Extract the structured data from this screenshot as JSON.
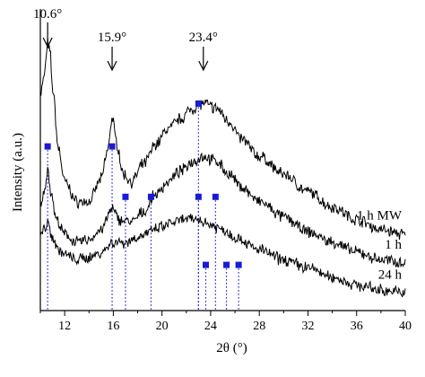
{
  "chart_data": {
    "type": "line",
    "title": "",
    "xlabel": "2θ (°)",
    "ylabel": "Intensity (a.u.)",
    "xlim": [
      10,
      40
    ],
    "x_ticks": [
      "12",
      "16",
      "20",
      "24",
      "28",
      "32",
      "36",
      "40"
    ],
    "y_ticks": "none",
    "grid": false,
    "legend": "none",
    "line_color": "#000000",
    "marker_color": "#1a1ad6",
    "series": [
      {
        "name": "1 h MW",
        "points": [
          [
            10.0,
            0.8
          ],
          [
            10.3,
            0.86
          ],
          [
            10.5,
            0.95
          ],
          [
            10.6,
            1.0
          ],
          [
            10.8,
            0.96
          ],
          [
            11.0,
            0.82
          ],
          [
            11.5,
            0.58
          ],
          [
            12.0,
            0.45
          ],
          [
            13.0,
            0.37
          ],
          [
            14.0,
            0.37
          ],
          [
            15.0,
            0.46
          ],
          [
            15.5,
            0.57
          ],
          [
            15.9,
            0.7
          ],
          [
            16.3,
            0.6
          ],
          [
            16.8,
            0.48
          ],
          [
            17.5,
            0.45
          ],
          [
            18.5,
            0.52
          ],
          [
            19.5,
            0.6
          ],
          [
            20.5,
            0.66
          ],
          [
            21.5,
            0.7
          ],
          [
            22.5,
            0.74
          ],
          [
            23.4,
            0.76
          ],
          [
            24.5,
            0.74
          ],
          [
            25.5,
            0.69
          ],
          [
            26.5,
            0.62
          ],
          [
            28.0,
            0.55
          ],
          [
            30.0,
            0.48
          ],
          [
            32.0,
            0.41
          ],
          [
            34.0,
            0.35
          ],
          [
            36.0,
            0.3
          ],
          [
            38.0,
            0.26
          ],
          [
            40.0,
            0.24
          ]
        ]
      },
      {
        "name": "1 h",
        "points": [
          [
            10.0,
            0.36
          ],
          [
            10.3,
            0.4
          ],
          [
            10.6,
            0.5
          ],
          [
            10.9,
            0.4
          ],
          [
            11.3,
            0.3
          ],
          [
            12.0,
            0.24
          ],
          [
            13.0,
            0.21
          ],
          [
            14.0,
            0.22
          ],
          [
            15.0,
            0.26
          ],
          [
            15.9,
            0.34
          ],
          [
            16.5,
            0.3
          ],
          [
            17.5,
            0.29
          ],
          [
            18.5,
            0.33
          ],
          [
            19.5,
            0.4
          ],
          [
            20.5,
            0.45
          ],
          [
            21.5,
            0.49
          ],
          [
            22.5,
            0.53
          ],
          [
            23.4,
            0.55
          ],
          [
            24.5,
            0.53
          ],
          [
            25.5,
            0.48
          ],
          [
            26.5,
            0.43
          ],
          [
            28.0,
            0.37
          ],
          [
            30.0,
            0.31
          ],
          [
            32.0,
            0.25
          ],
          [
            34.0,
            0.21
          ],
          [
            36.0,
            0.17
          ],
          [
            38.0,
            0.14
          ],
          [
            40.0,
            0.13
          ]
        ]
      },
      {
        "name": "24 h",
        "points": [
          [
            10.0,
            0.24
          ],
          [
            10.3,
            0.26
          ],
          [
            10.6,
            0.29
          ],
          [
            10.9,
            0.24
          ],
          [
            11.5,
            0.18
          ],
          [
            12.0,
            0.16
          ],
          [
            13.0,
            0.14
          ],
          [
            14.0,
            0.15
          ],
          [
            15.0,
            0.17
          ],
          [
            16.0,
            0.21
          ],
          [
            17.0,
            0.21
          ],
          [
            18.0,
            0.23
          ],
          [
            19.0,
            0.25
          ],
          [
            20.0,
            0.27
          ],
          [
            21.0,
            0.29
          ],
          [
            22.0,
            0.3
          ],
          [
            23.0,
            0.3
          ],
          [
            24.0,
            0.28
          ],
          [
            25.0,
            0.26
          ],
          [
            26.0,
            0.23
          ],
          [
            28.0,
            0.18
          ],
          [
            30.0,
            0.14
          ],
          [
            32.0,
            0.11
          ],
          [
            34.0,
            0.07
          ],
          [
            36.0,
            0.04
          ],
          [
            38.0,
            0.02
          ],
          [
            40.0,
            0.01
          ]
        ]
      }
    ],
    "peak_annotations": [
      {
        "label": "10.6°",
        "x": 10.6
      },
      {
        "label": "15.9°",
        "x": 15.9
      },
      {
        "label": "23.4°",
        "x": 23.4
      }
    ],
    "reference_markers": [
      {
        "x": 10.6,
        "y": 0.59
      },
      {
        "x": 15.9,
        "y": 0.59
      },
      {
        "x": 23.0,
        "y": 0.76
      },
      {
        "x": 17.0,
        "y": 0.39
      },
      {
        "x": 19.1,
        "y": 0.39
      },
      {
        "x": 23.0,
        "y": 0.39
      },
      {
        "x": 24.4,
        "y": 0.39
      },
      {
        "x": 23.6,
        "y": 0.12
      },
      {
        "x": 25.3,
        "y": 0.12
      },
      {
        "x": 26.3,
        "y": 0.12
      }
    ]
  }
}
